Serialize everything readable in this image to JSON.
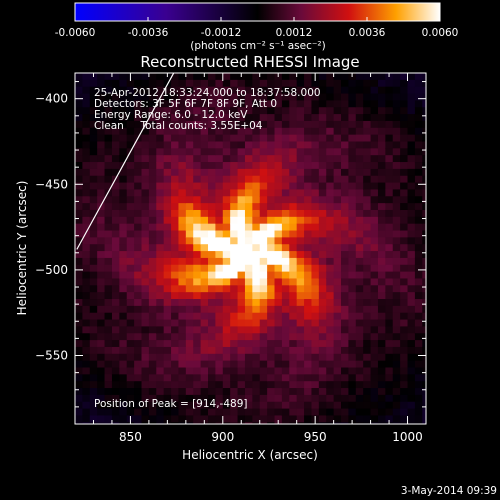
{
  "chart_data": {
    "type": "heatmap",
    "title": "Reconstructed RHESSI Image",
    "xlabel": "Heliocentric X (arcsec)",
    "ylabel": "Heliocentric Y (arcsec)",
    "xlim": [
      820,
      1010
    ],
    "ylim": [
      -590,
      -385
    ],
    "x_ticks": [
      850,
      900,
      950,
      1000
    ],
    "y_ticks": [
      -400,
      -450,
      -500,
      -550
    ],
    "colorbar": {
      "min": -0.006,
      "max": 0.006,
      "ticks": [
        "-0.0060",
        "-0.0036",
        "-0.0012",
        "0.0012",
        "0.0036",
        "0.0060"
      ],
      "unit_label": "(photons cm⁻² s⁻¹ asec⁻²)",
      "colormap": "blue-black-red-yellow-white"
    },
    "annotations": [
      "25-Apr-2012 18:33:24.000 to 18:37:58.000",
      "Detectors: 3F 5F 6F 7F 8F 9F, Att 0",
      "Energy Range: 6.0 - 12.0 keV",
      "Clean     Total counts: 3.55E+04"
    ],
    "peak_label": "Position of Peak = [914,-489]",
    "peak": {
      "x": 914,
      "y": -489,
      "value": 0.006
    },
    "limb_line": [
      [
        821,
        -488
      ],
      [
        877,
        -378
      ]
    ],
    "timestamp": "3-May-2014 09:39"
  }
}
